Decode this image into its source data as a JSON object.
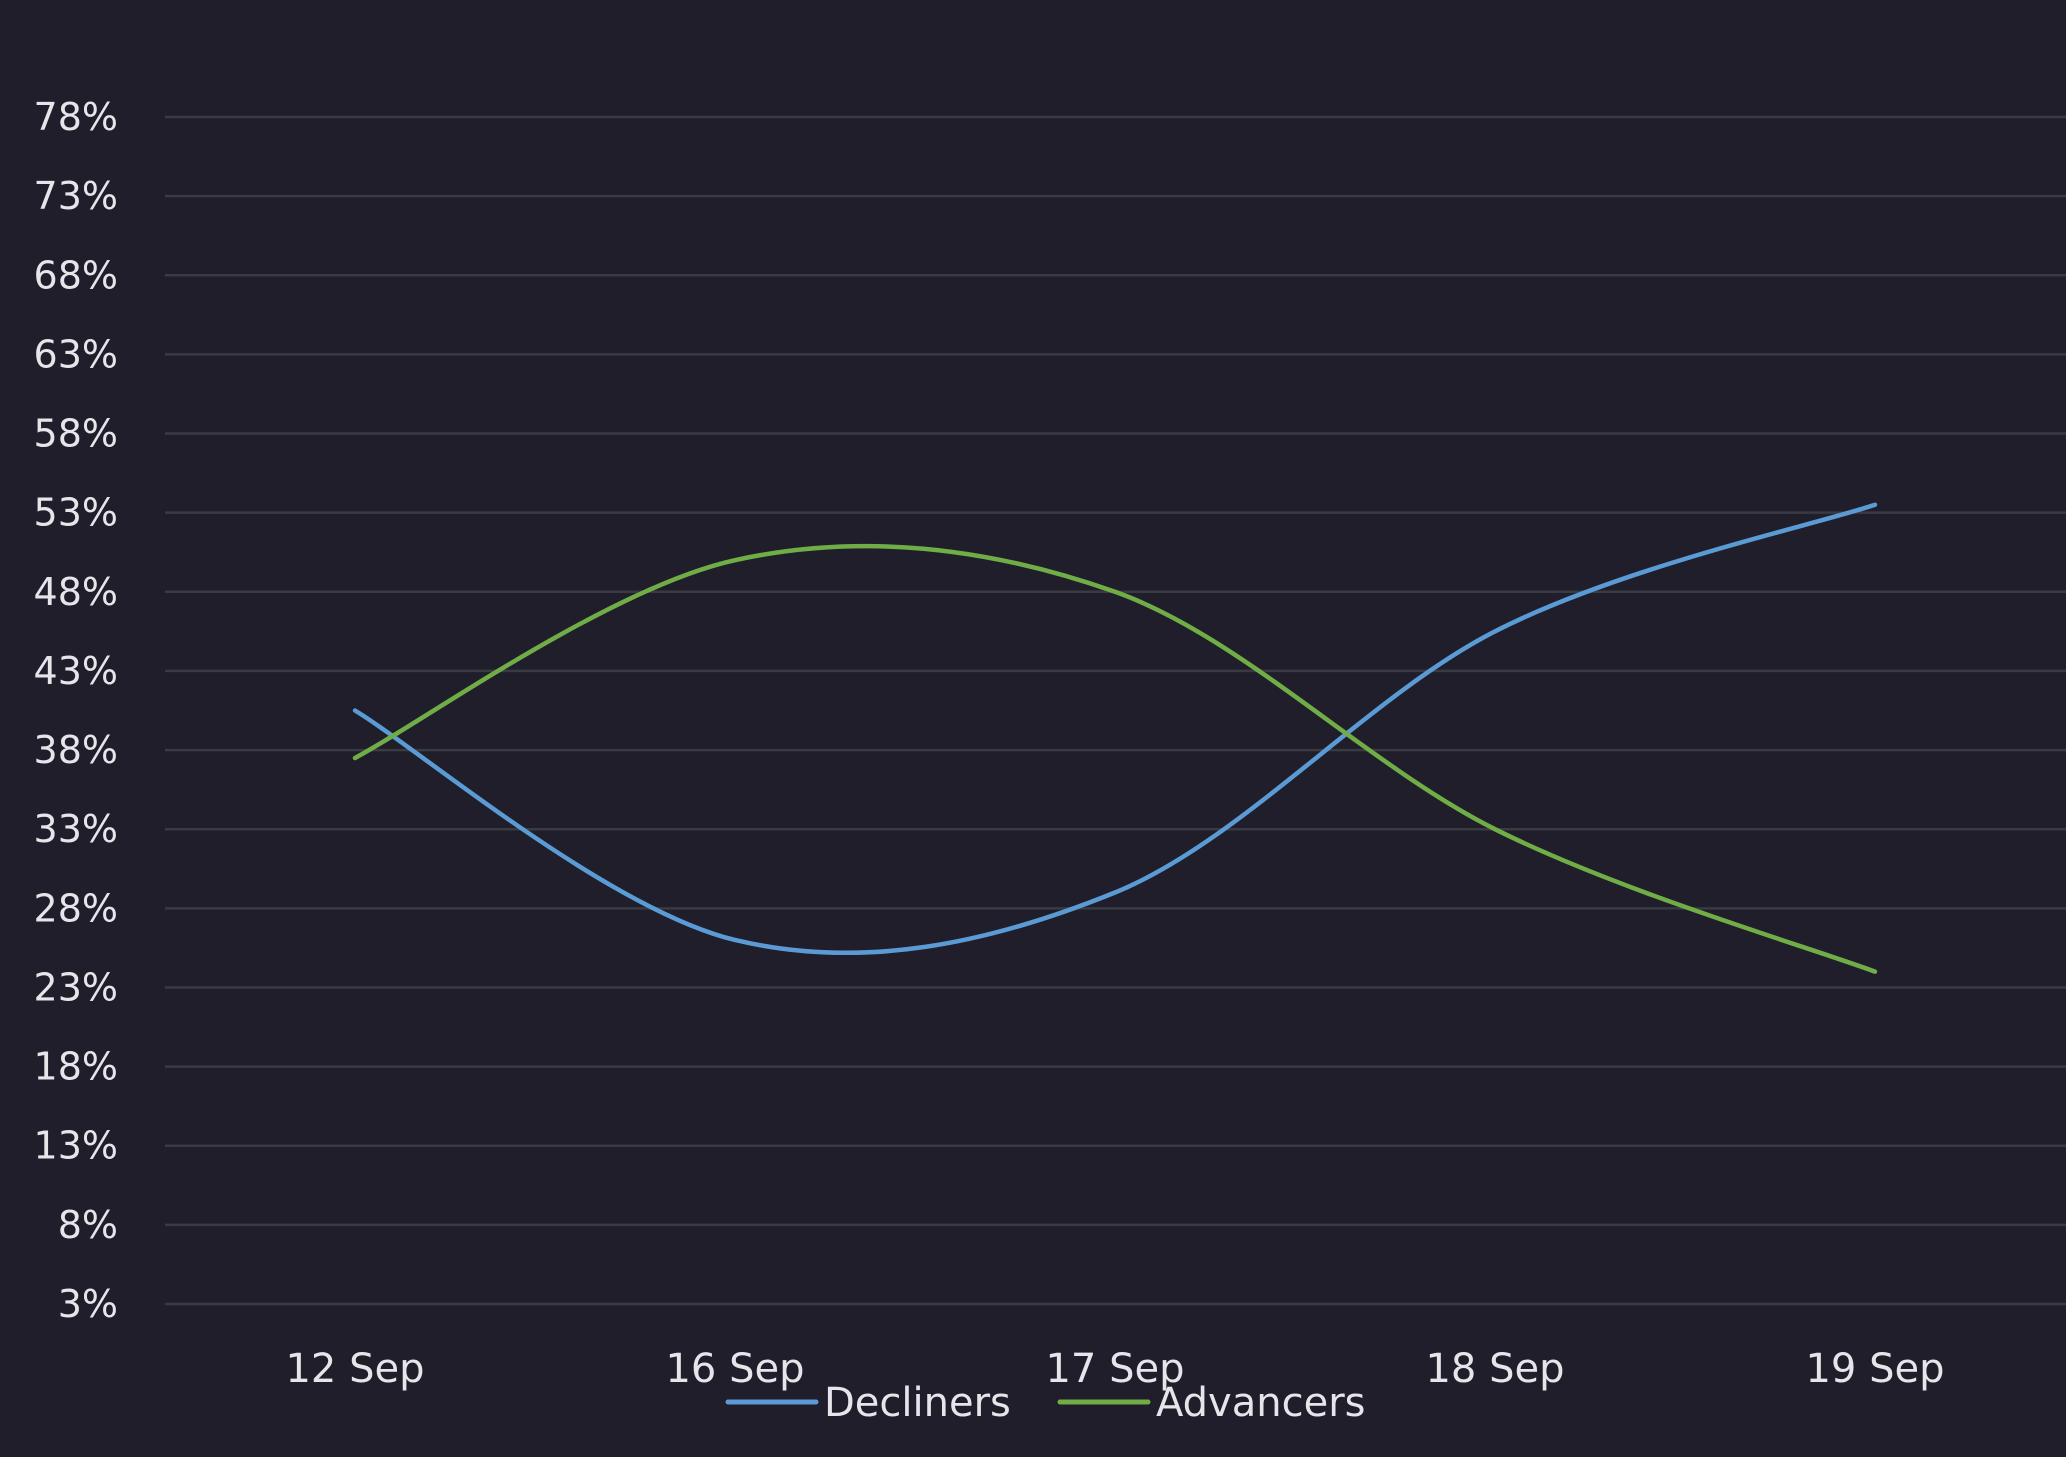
{
  "colors": {
    "background": "#1f1e2a",
    "grid": "#3a3a42",
    "text": "#e6e6ea"
  },
  "chart_data": {
    "type": "line",
    "categories": [
      "12 Sep",
      "16 Sep",
      "17 Sep",
      "18 Sep",
      "19 Sep"
    ],
    "series": [
      {
        "name": "Decliners",
        "color": "#5b9bd5",
        "values": [
          40.5,
          26.0,
          29.0,
          45.5,
          53.5
        ]
      },
      {
        "name": "Advancers",
        "color": "#70ad47",
        "values": [
          37.5,
          50.0,
          48.0,
          33.0,
          24.0
        ]
      }
    ],
    "yticks": [
      "78%",
      "73%",
      "68%",
      "63%",
      "58%",
      "53%",
      "48%",
      "43%",
      "38%",
      "33%",
      "28%",
      "23%",
      "18%",
      "13%",
      "8%",
      "3%"
    ],
    "ylim": [
      3,
      78
    ],
    "grid": true,
    "legend": "bottom-center",
    "curve": "smooth"
  }
}
